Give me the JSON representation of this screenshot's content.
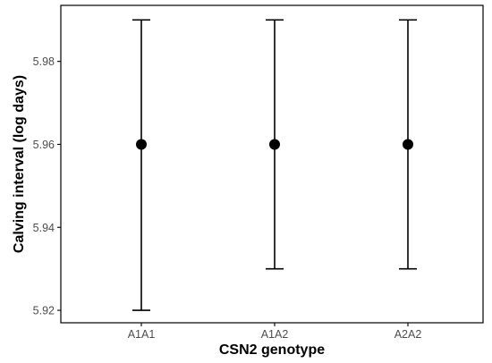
{
  "chart_data": {
    "type": "scatter",
    "xlabel": "CSN2 genotype",
    "ylabel": "Calving interval (log days)",
    "categories": [
      "A1A1",
      "A1A2",
      "A2A2"
    ],
    "series": [
      {
        "points": [
          {
            "x": "A1A1",
            "y": 5.96,
            "lower": 5.92,
            "upper": 5.99
          },
          {
            "x": "A1A2",
            "y": 5.96,
            "lower": 5.93,
            "upper": 5.99
          },
          {
            "x": "A2A2",
            "y": 5.96,
            "lower": 5.93,
            "upper": 5.99
          }
        ]
      }
    ],
    "yticks": [
      "5.92",
      "5.94",
      "5.96",
      "5.98"
    ],
    "ylim": [
      5.917,
      5.9935
    ],
    "grid": false,
    "legend": "none",
    "colors": {
      "point": "#000000",
      "errorbar": "#000000",
      "axis": "#000000",
      "tick_label": "#4d4d4d"
    }
  }
}
